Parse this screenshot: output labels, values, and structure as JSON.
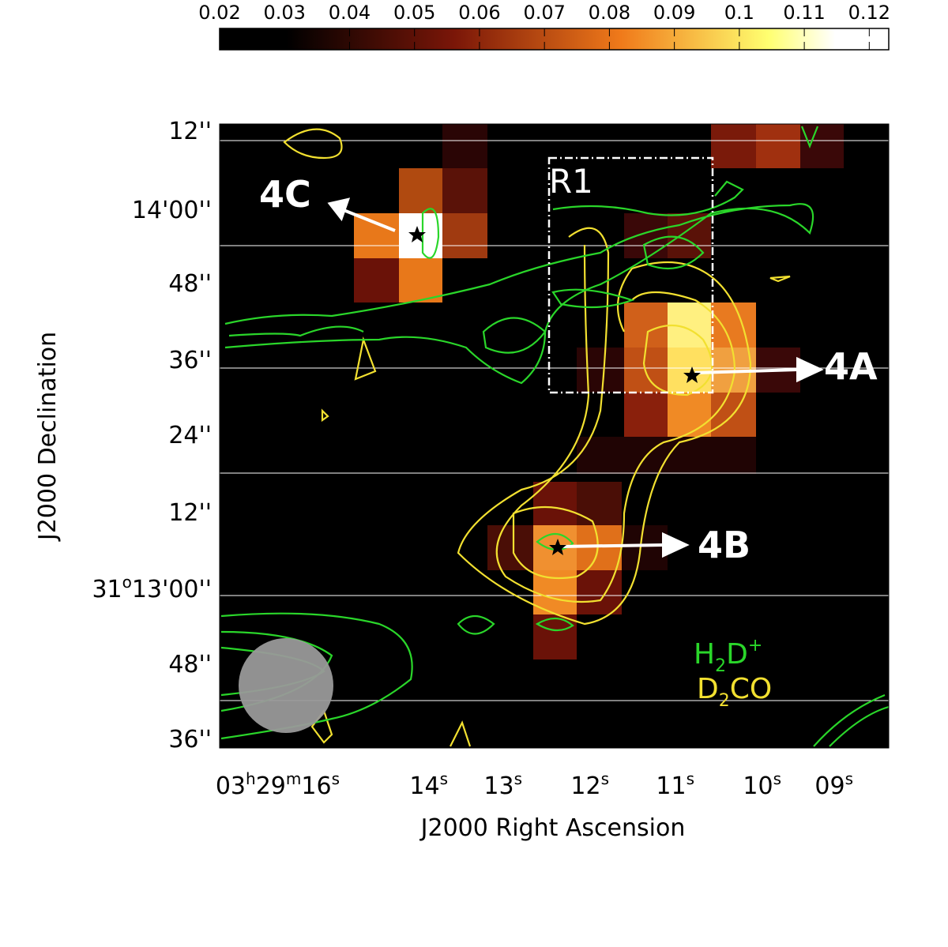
{
  "colorbar": {
    "ticks": [
      0.02,
      0.03,
      0.04,
      0.05,
      0.06,
      0.07,
      0.08,
      0.09,
      0.1,
      0.11,
      0.12
    ],
    "lim": [
      0.02,
      0.123
    ]
  },
  "x_axis": {
    "label": "J2000 Right Ascension",
    "ticks": [
      [
        "03",
        "h",
        "29",
        "m",
        "16",
        "s"
      ],
      [
        "14",
        "s"
      ],
      [
        "13",
        "s"
      ],
      [
        "12",
        "s"
      ],
      [
        "11",
        "s"
      ],
      [
        "10",
        "s"
      ],
      [
        "09",
        "s"
      ]
    ]
  },
  "y_axis": {
    "label": "J2000 Declination",
    "ticks": [
      [
        "12''"
      ],
      [
        "14'00''"
      ],
      [
        "48''"
      ],
      [
        "36''"
      ],
      [
        "24''"
      ],
      [
        "12''"
      ],
      [
        "31",
        "o",
        "13'00''"
      ],
      [
        "48''"
      ],
      [
        "36''"
      ]
    ]
  },
  "annotations": {
    "c": "4C",
    "a": "4A",
    "b": "4B",
    "region": "R1"
  },
  "legend": {
    "h2d": [
      "H",
      "2",
      "D",
      "+"
    ],
    "d2co": [
      "D",
      "2",
      "CO"
    ]
  }
}
